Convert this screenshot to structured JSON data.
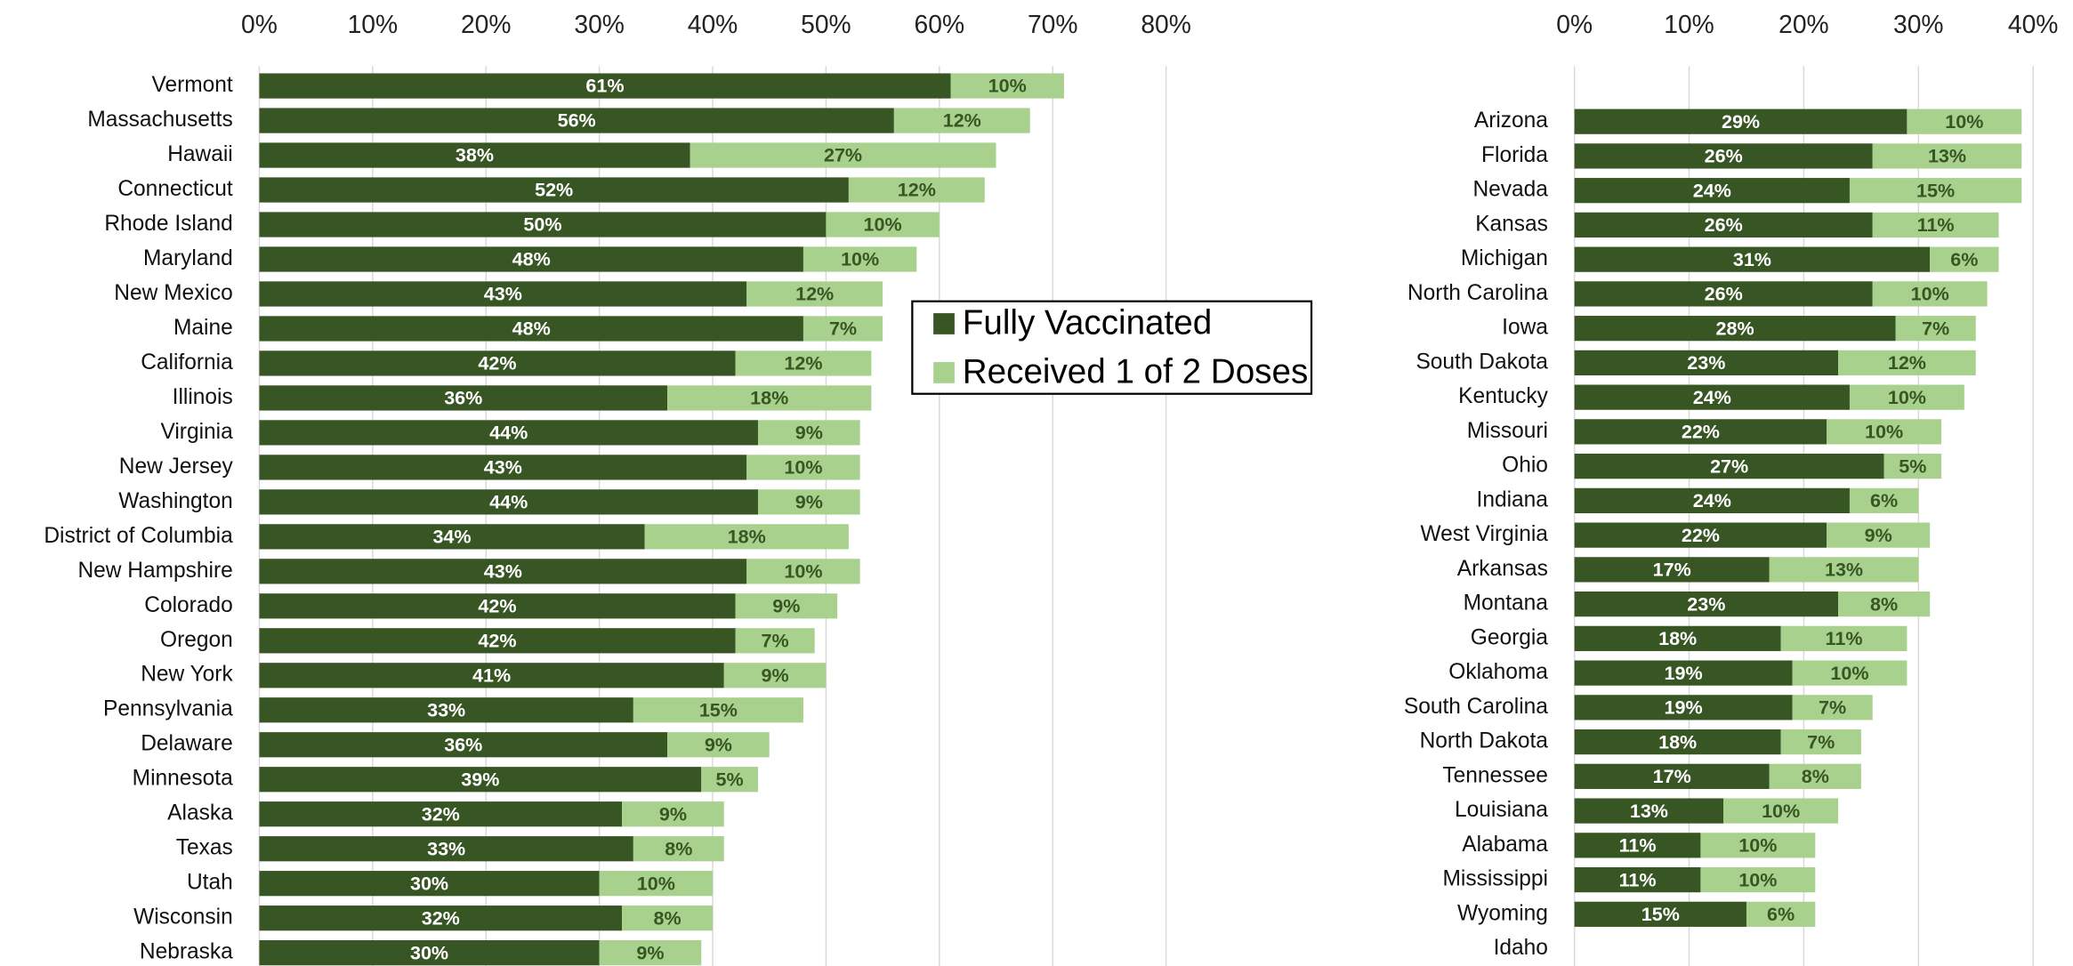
{
  "chart_data": [
    {
      "type": "bar",
      "orientation": "horizontal",
      "stacked": true,
      "categories": [
        "Vermont",
        "Massachusetts",
        "Hawaii",
        "Connecticut",
        "Rhode Island",
        "Maryland",
        "New Mexico",
        "Maine",
        "California",
        "Illinois",
        "Virginia",
        "New Jersey",
        "Washington",
        "District of Columbia",
        "New Hampshire",
        "Colorado",
        "Oregon",
        "New York",
        "Pennsylvania",
        "Delaware",
        "Minnesota",
        "Alaska",
        "Texas",
        "Utah",
        "Wisconsin",
        "Nebraska"
      ],
      "series": [
        {
          "name": "Fully Vaccinated",
          "color": "#375623",
          "values": [
            61,
            56,
            38,
            52,
            50,
            48,
            43,
            48,
            42,
            36,
            44,
            43,
            44,
            34,
            43,
            42,
            42,
            41,
            33,
            36,
            39,
            32,
            33,
            30,
            32,
            30
          ],
          "value_labels": [
            "61%",
            "56%",
            "38%",
            "52%",
            "50%",
            "48%",
            "43%",
            "48%",
            "42%",
            "36%",
            "44%",
            "43%",
            "44%",
            "34%",
            "43%",
            "42%",
            "42%",
            "41%",
            "33%",
            "36%",
            "39%",
            "32%",
            "33%",
            "30%",
            "32%",
            "30%"
          ]
        },
        {
          "name": "Received 1 of 2 Doses",
          "color": "#a9d18e",
          "values": [
            10,
            12,
            27,
            12,
            10,
            10,
            12,
            7,
            12,
            18,
            9,
            10,
            9,
            18,
            10,
            9,
            7,
            9,
            15,
            9,
            5,
            9,
            8,
            10,
            8,
            9
          ],
          "value_labels": [
            "10%",
            "12%",
            "27%",
            "12%",
            "10%",
            "10%",
            "12%",
            "7%",
            "12%",
            "18%",
            "9%",
            "10%",
            "9%",
            "18%",
            "10%",
            "9%",
            "7%",
            "9%",
            "15%",
            "9%",
            "5%",
            "9%",
            "8%",
            "10%",
            "8%",
            "9%"
          ]
        }
      ],
      "xlim": [
        0,
        80
      ],
      "xticks": [
        {
          "value": 0,
          "label": "0%"
        },
        {
          "value": 10,
          "label": "10%"
        },
        {
          "value": 20,
          "label": "20%"
        },
        {
          "value": 30,
          "label": "30%"
        },
        {
          "value": 40,
          "label": "40%"
        },
        {
          "value": 50,
          "label": "50%"
        },
        {
          "value": 60,
          "label": "60%"
        },
        {
          "value": 70,
          "label": "70%"
        },
        {
          "value": 80,
          "label": "80%"
        }
      ],
      "grid": true,
      "legend": "right"
    },
    {
      "type": "bar",
      "orientation": "horizontal",
      "stacked": true,
      "categories": [
        "Arizona",
        "Florida",
        "Nevada",
        "Kansas",
        "Michigan",
        "North Carolina",
        "Iowa",
        "South Dakota",
        "Kentucky",
        "Missouri",
        "Ohio",
        "Indiana",
        "West Virginia",
        "Arkansas",
        "Montana",
        "Georgia",
        "Oklahoma",
        "South Carolina",
        "North Dakota",
        "Tennessee",
        "Louisiana",
        "Alabama",
        "Mississippi",
        "Wyoming",
        "Idaho"
      ],
      "series": [
        {
          "color": "#375623",
          "values": [
            29,
            26,
            24,
            26,
            31,
            26,
            28,
            23,
            24,
            22,
            27,
            24,
            22,
            17,
            23,
            18,
            19,
            19,
            18,
            17,
            13,
            11,
            11,
            15,
            null
          ],
          "value_labels": [
            "29%",
            "26%",
            "24%",
            "26%",
            "31%",
            "26%",
            "28%",
            "23%",
            "24%",
            "22%",
            "27%",
            "24%",
            "22%",
            "17%",
            "23%",
            "18%",
            "19%",
            "19%",
            "18%",
            "17%",
            "13%",
            "11%",
            "11%",
            "15%",
            null
          ]
        },
        {
          "color": "#a9d18e",
          "values": [
            10,
            13,
            15,
            11,
            6,
            10,
            7,
            12,
            10,
            10,
            5,
            6,
            9,
            13,
            8,
            11,
            10,
            7,
            7,
            8,
            10,
            10,
            10,
            6,
            null
          ],
          "value_labels": [
            "10%",
            "13%",
            "15%",
            "11%",
            "6%",
            "10%",
            "7%",
            "12%",
            "10%",
            "10%",
            "5%",
            "6%",
            "9%",
            "13%",
            "8%",
            "11%",
            "10%",
            "7%",
            "7%",
            "8%",
            "10%",
            "10%",
            "10%",
            "6%",
            null
          ]
        }
      ],
      "xlim": [
        0,
        40
      ],
      "xticks": [
        {
          "value": 0,
          "label": "0%"
        },
        {
          "value": 10,
          "label": "10%"
        },
        {
          "value": 20,
          "label": "20%"
        },
        {
          "value": 30,
          "label": "30%"
        },
        {
          "value": 40,
          "label": "40%"
        }
      ],
      "grid": true
    }
  ]
}
